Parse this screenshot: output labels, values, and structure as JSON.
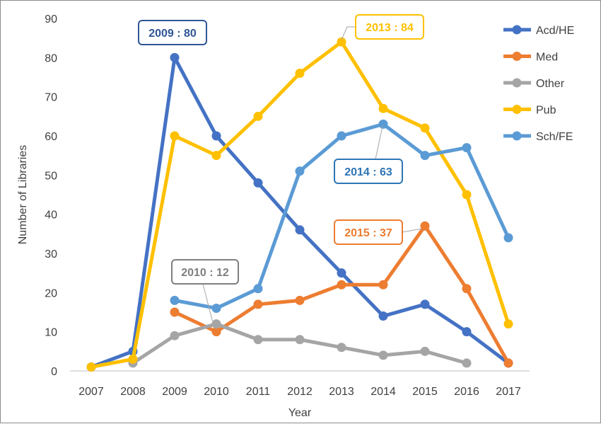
{
  "chart_data": {
    "type": "line",
    "title": "",
    "xlabel": "Year",
    "ylabel": "Number of Libraries",
    "x": [
      "2007",
      "2008",
      "2009",
      "2010",
      "2011",
      "2012",
      "2013",
      "2014",
      "2015",
      "2016",
      "2017"
    ],
    "ylim": [
      0,
      90
    ],
    "yticks": [
      0,
      10,
      20,
      30,
      40,
      50,
      60,
      70,
      80,
      90
    ],
    "grid": false,
    "legend_position": "right",
    "series": [
      {
        "name": "Acd/HE",
        "color": "#4472C4",
        "values": [
          1,
          5,
          80,
          60,
          48,
          36,
          25,
          14,
          17,
          10,
          2
        ]
      },
      {
        "name": "Med",
        "color": "#ED7D31",
        "values": [
          null,
          null,
          15,
          10,
          17,
          18,
          22,
          22,
          37,
          21,
          2
        ]
      },
      {
        "name": "Other",
        "color": "#A5A5A5",
        "values": [
          null,
          2,
          9,
          12,
          8,
          8,
          6,
          4,
          5,
          2,
          null
        ]
      },
      {
        "name": "Pub",
        "color": "#FFC000",
        "values": [
          1,
          3,
          60,
          55,
          65,
          76,
          84,
          67,
          62,
          45,
          12
        ]
      },
      {
        "name": "Sch/FE",
        "color": "#5B9BD5",
        "values": [
          null,
          null,
          18,
          16,
          21,
          51,
          60,
          63,
          55,
          57,
          34
        ]
      }
    ],
    "annotations": [
      {
        "text": "2009 : 80",
        "series": "Acd/HE",
        "x": "2009",
        "y": 80,
        "color": "#2F5597"
      },
      {
        "text": "2013 : 84",
        "series": "Pub",
        "x": "2013",
        "y": 84,
        "color": "#FFC000"
      },
      {
        "text": "2014 : 63",
        "series": "Sch/FE",
        "x": "2014",
        "y": 63,
        "color": "#2E75B6"
      },
      {
        "text": "2015 : 37",
        "series": "Med",
        "x": "2015",
        "y": 37,
        "color": "#ED7D31"
      },
      {
        "text": "2010 : 12",
        "series": "Other",
        "x": "2010",
        "y": 12,
        "color": "#7F7F7F"
      }
    ]
  }
}
